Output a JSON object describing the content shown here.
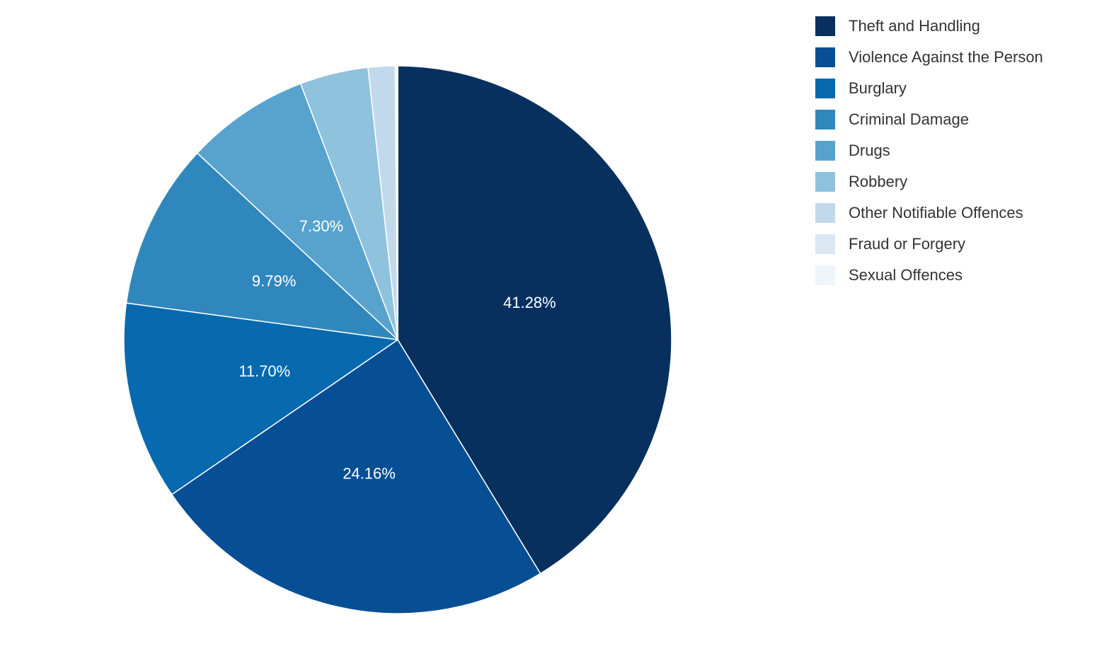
{
  "chart_data": {
    "type": "pie",
    "title": "",
    "legend_position": "right",
    "direction": "clockwise",
    "start_angle": "12-oclock",
    "label_radius_ratio": 0.5,
    "label_color": "#ffffff",
    "legend_text_color": "#333333",
    "background_color": "#ffffff",
    "categories": [
      "Theft and Handling",
      "Violence Against the Person",
      "Burglary",
      "Criminal Damage",
      "Drugs",
      "Robbery",
      "Other Notifiable Offences",
      "Fraud or Forgery",
      "Sexual Offences"
    ],
    "values": [
      41.28,
      24.16,
      11.7,
      9.79,
      7.3,
      4.04,
      1.58,
      0.1,
      0.05
    ],
    "slices": [
      {
        "name": "Theft and Handling",
        "value": 41.28,
        "label": "41.28%",
        "color": "#07305f"
      },
      {
        "name": "Violence Against the Person",
        "value": 24.16,
        "label": "24.16%",
        "color": "#074f94"
      },
      {
        "name": "Burglary",
        "value": 11.7,
        "label": "11.70%",
        "color": "#0769ae"
      },
      {
        "name": "Criminal Damage",
        "value": 9.79,
        "label": "9.79%",
        "color": "#3087bd"
      },
      {
        "name": "Drugs",
        "value": 7.3,
        "label": "7.30%",
        "color": "#58a3cd"
      },
      {
        "name": "Robbery",
        "value": 4.04,
        "label": null,
        "color": "#8fc2dd"
      },
      {
        "name": "Other Notifiable Offences",
        "value": 1.58,
        "label": null,
        "color": "#c2d9ec"
      },
      {
        "name": "Fraud or Forgery",
        "value": 0.1,
        "label": null,
        "color": "#dae8f4"
      },
      {
        "name": "Sexual Offences",
        "value": 0.05,
        "label": null,
        "color": "#eef5fb"
      }
    ]
  }
}
